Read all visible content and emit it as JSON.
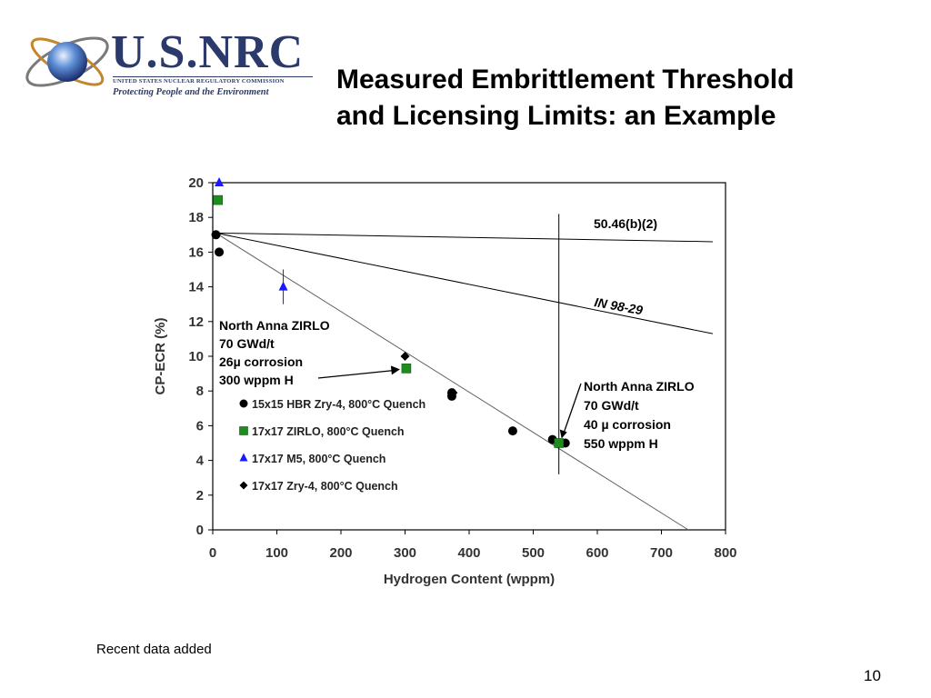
{
  "slide": {
    "title_line1": "Measured Embrittlement Threshold",
    "title_line2": "and Licensing Limits:  an Example",
    "footnote": "Recent data added",
    "page_number": "10"
  },
  "logo": {
    "name": "U.S.NRC",
    "subtitle": "UNITED STATES NUCLEAR REGULATORY COMMISSION",
    "tagline": "Protecting People and the Environment",
    "brand_color": "#2b3a6b"
  },
  "chart_data": {
    "type": "scatter",
    "xlabel": "Hydrogen Content (wppm)",
    "ylabel": "CP-ECR (%)",
    "xlim": [
      0,
      800
    ],
    "ylim": [
      0,
      20
    ],
    "xticks": [
      0,
      100,
      200,
      300,
      400,
      500,
      600,
      700,
      800
    ],
    "yticks": [
      0,
      2,
      4,
      6,
      8,
      10,
      12,
      14,
      16,
      18,
      20
    ],
    "grid": false,
    "legend_position": "center-left",
    "series": [
      {
        "name": "15x15 HBR Zry-4, 800°C Quench",
        "marker": "circle",
        "color": "#000000",
        "points": [
          [
            5,
            17
          ],
          [
            10,
            16
          ],
          [
            373,
            7.7
          ],
          [
            373,
            7.9
          ],
          [
            468,
            5.7
          ],
          [
            530,
            5.2
          ],
          [
            550,
            5
          ]
        ]
      },
      {
        "name": "17x17 ZIRLO, 800°C Quench",
        "marker": "square",
        "color": "#1e8c1e",
        "points": [
          [
            8,
            19
          ],
          [
            302,
            9.3
          ],
          [
            540,
            5
          ]
        ]
      },
      {
        "name": "17x17 M5, 800°C Quench",
        "marker": "triangle",
        "color": "#1a1aff",
        "points": [
          [
            10,
            20
          ],
          [
            110,
            14
          ]
        ],
        "error_bars": [
          {
            "x": 110,
            "y_low": 13,
            "y_high": 15
          }
        ]
      },
      {
        "name": "17x17 Zry-4, 800°C Quench",
        "marker": "diamond",
        "color": "#000000",
        "points": [
          [
            300,
            10
          ],
          [
            375,
            7.9
          ]
        ]
      }
    ],
    "lines": [
      {
        "label": "50.46(b)(2)",
        "from": [
          5,
          17.1
        ],
        "to": [
          780,
          16.6
        ],
        "color": "#000000"
      },
      {
        "label": "IN 98-29",
        "from": [
          5,
          17.1
        ],
        "to": [
          780,
          11.3
        ],
        "color": "#000000"
      },
      {
        "label": "",
        "from": [
          5,
          17.1
        ],
        "to": [
          742,
          0
        ],
        "color": "#606060"
      },
      {
        "label": "",
        "from": [
          540,
          18.2
        ],
        "to": [
          540,
          3.2
        ],
        "color": "#000000"
      }
    ],
    "annotations": [
      {
        "lines": [
          "North Anna ZIRLO",
          "70 GWd/t",
          "26µ corrosion",
          "300 wppm H"
        ],
        "arrow_to": [
          302,
          9.3
        ]
      },
      {
        "lines": [
          "North Anna ZIRLO",
          "70 GWd/t",
          "40 µ corrosion",
          "550 wppm H"
        ],
        "arrow_to": [
          540,
          5
        ]
      }
    ]
  }
}
